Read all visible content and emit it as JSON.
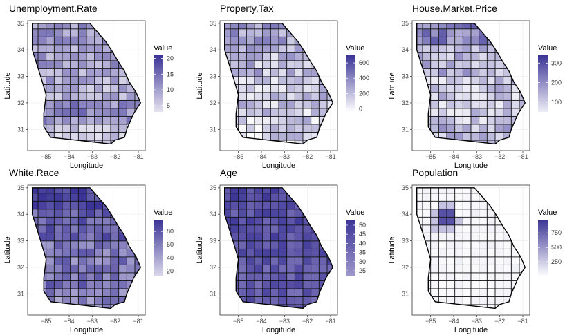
{
  "chart_data": [
    {
      "type": "choropleth",
      "title": "Unemployment.Rate",
      "xlabel": "Longitude",
      "ylabel": "Latitude",
      "xticks": [
        -85,
        -84,
        -83,
        -82,
        -81
      ],
      "yticks": [
        35,
        34,
        33,
        32,
        31
      ],
      "xlim": [
        -85.8,
        -80.7
      ],
      "ylim": [
        30.2,
        35.1
      ],
      "legend": {
        "title": "Value",
        "range": [
          3,
          21
        ],
        "ticks": [
          5,
          10,
          15,
          20
        ]
      },
      "fill": {
        "low": "#e6e3f0",
        "high": "#3b3496"
      },
      "relative_scale": [
        0.42,
        0.38,
        0.3,
        0.5,
        0.22
      ]
    },
    {
      "type": "choropleth",
      "title": "Property.Tax",
      "xlabel": "Longitude",
      "ylabel": "Latitude",
      "xticks": [
        -85,
        -84,
        -83,
        -82,
        -81
      ],
      "yticks": [
        35,
        34,
        33,
        32,
        31
      ],
      "xlim": [
        -85.8,
        -80.7
      ],
      "ylim": [
        30.2,
        35.1
      ],
      "legend": {
        "title": "Value",
        "range": [
          -40,
          700
        ],
        "ticks": [
          0,
          200,
          400,
          600
        ]
      },
      "fill": {
        "low": "#ffffff",
        "high": "#3b3496"
      },
      "relative_scale": [
        0.45,
        0.35,
        0.3,
        0.25,
        0.22
      ]
    },
    {
      "type": "choropleth",
      "title": "House.Market.Price",
      "xlabel": "Longitude",
      "ylabel": "Latitude",
      "xticks": [
        -85,
        -84,
        -83,
        -82,
        -81
      ],
      "yticks": [
        35,
        34,
        33,
        32,
        31
      ],
      "xlim": [
        -85.8,
        -80.7
      ],
      "ylim": [
        30.2,
        35.1
      ],
      "legend": {
        "title": "Value",
        "range": [
          50,
          340
        ],
        "ticks": [
          100,
          200,
          300
        ]
      },
      "fill": {
        "low": "#eeedf6",
        "high": "#3b3496"
      },
      "relative_scale": [
        0.55,
        0.3,
        0.2,
        0.15,
        0.3
      ]
    },
    {
      "type": "choropleth",
      "title": "White.Race",
      "xlabel": "Longitude",
      "ylabel": "Latitude",
      "xticks": [
        -85,
        -84,
        -83,
        -82,
        -81
      ],
      "yticks": [
        35,
        34,
        33,
        32,
        31
      ],
      "xlim": [
        -85.8,
        -80.7
      ],
      "ylim": [
        30.2,
        35.1
      ],
      "legend": {
        "title": "Value",
        "range": [
          12,
          98
        ],
        "ticks": [
          20,
          40,
          60,
          80
        ]
      },
      "fill": {
        "low": "#dcd9ec",
        "high": "#3b3496"
      },
      "relative_scale": [
        0.92,
        0.7,
        0.55,
        0.6,
        0.5
      ]
    },
    {
      "type": "choropleth",
      "title": "Age",
      "xlabel": "Longitude",
      "ylabel": "Latitude",
      "xticks": [
        -85,
        -84,
        -83,
        -82,
        -81
      ],
      "yticks": [
        35,
        34,
        33,
        32,
        31
      ],
      "xlim": [
        -85.8,
        -80.7
      ],
      "ylim": [
        30.2,
        35.1
      ],
      "legend": {
        "title": "Value",
        "range": [
          22,
          53
        ],
        "ticks": [
          25,
          30,
          35,
          40,
          45,
          50
        ]
      },
      "fill": {
        "low": "#9f98cc",
        "high": "#3b3496"
      },
      "relative_scale": [
        0.75,
        0.7,
        0.65,
        0.62,
        0.6
      ]
    },
    {
      "type": "choropleth",
      "title": "Population",
      "xlabel": "Longitude",
      "ylabel": "Latitude",
      "xticks": [
        -85,
        -84,
        -83,
        -82,
        -81
      ],
      "yticks": [
        35,
        34,
        33,
        32,
        31
      ],
      "xlim": [
        -85.8,
        -80.7
      ],
      "ylim": [
        30.2,
        35.1
      ],
      "legend": {
        "title": "Value",
        "range": [
          0,
          980
        ],
        "ticks": [
          250,
          500,
          750
        ]
      },
      "fill": {
        "low": "#ffffff",
        "high": "#3b3496"
      },
      "relative_scale": [
        0.05,
        0.03,
        0.02,
        0.02,
        0.02
      ]
    }
  ]
}
